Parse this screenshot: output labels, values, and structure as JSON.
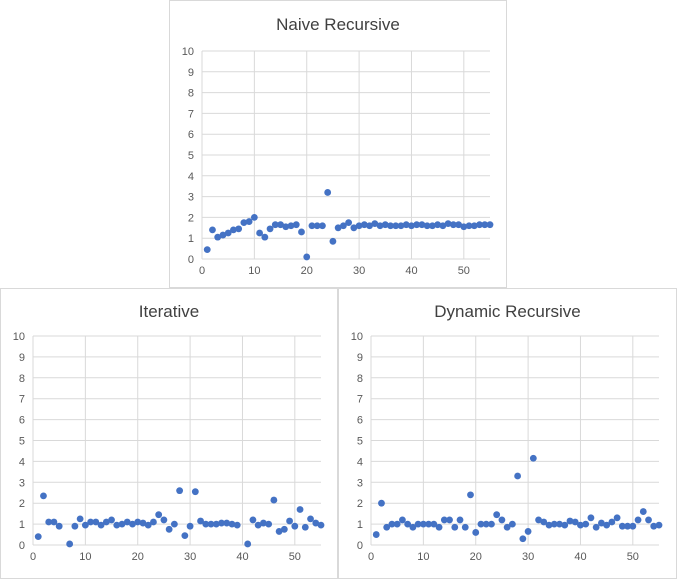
{
  "chart_data": [
    {
      "type": "scatter",
      "title": "Naive Recursive",
      "color": "#4472c4",
      "ylim": [
        0,
        10
      ],
      "xlim": [
        0,
        55
      ],
      "xticks": [
        0,
        10,
        20,
        30,
        40,
        50
      ],
      "yticks": [
        0,
        1,
        2,
        3,
        4,
        5,
        6,
        7,
        8,
        9,
        10
      ],
      "grid": true,
      "x": [
        1,
        2,
        3,
        4,
        5,
        6,
        7,
        8,
        9,
        10,
        11,
        12,
        13,
        14,
        15,
        16,
        17,
        18,
        19,
        20,
        21,
        22,
        23,
        24,
        25,
        26,
        27,
        28,
        29,
        30,
        31,
        32,
        33,
        34,
        35,
        36,
        37,
        38,
        39,
        40,
        41,
        42,
        43,
        44,
        45,
        46,
        47,
        48,
        49,
        50,
        51,
        52,
        53,
        54,
        55
      ],
      "y": [
        0.45,
        1.4,
        1.05,
        1.15,
        1.25,
        1.4,
        1.45,
        1.75,
        1.8,
        2.0,
        1.25,
        1.05,
        1.45,
        1.65,
        1.65,
        1.55,
        1.6,
        1.65,
        1.3,
        0.1,
        1.6,
        1.6,
        1.6,
        3.2,
        0.85,
        1.5,
        1.6,
        1.75,
        1.5,
        1.6,
        1.65,
        1.6,
        1.7,
        1.6,
        1.65,
        1.6,
        1.6,
        1.6,
        1.65,
        1.6,
        1.65,
        1.65,
        1.6,
        1.6,
        1.65,
        1.6,
        1.7,
        1.65,
        1.65,
        1.55,
        1.6,
        1.6,
        1.65,
        1.65,
        1.65
      ]
    },
    {
      "type": "scatter",
      "title": "Iterative",
      "color": "#4472c4",
      "ylim": [
        0,
        10
      ],
      "xlim": [
        0,
        55
      ],
      "xticks": [
        0,
        10,
        20,
        30,
        40,
        50
      ],
      "yticks": [
        0,
        1,
        2,
        3,
        4,
        5,
        6,
        7,
        8,
        9,
        10
      ],
      "grid": true,
      "x": [
        1,
        2,
        3,
        4,
        5,
        6,
        7,
        8,
        9,
        10,
        11,
        12,
        13,
        14,
        15,
        16,
        17,
        18,
        19,
        20,
        21,
        22,
        23,
        24,
        25,
        26,
        27,
        28,
        29,
        30,
        31,
        32,
        33,
        34,
        35,
        36,
        37,
        38,
        39,
        40,
        41,
        42,
        43,
        44,
        45,
        46,
        47,
        48,
        49,
        50,
        51,
        52,
        53,
        54,
        55
      ],
      "y": [
        0.4,
        2.35,
        1.1,
        1.1,
        0.9,
        null,
        0.05,
        0.9,
        1.25,
        0.95,
        1.1,
        1.1,
        0.95,
        1.1,
        1.2,
        0.95,
        1.0,
        1.1,
        1.0,
        1.1,
        1.05,
        0.95,
        1.1,
        1.45,
        1.2,
        0.75,
        1.0,
        2.6,
        0.45,
        0.9,
        2.55,
        1.15,
        1.0,
        1.0,
        1.0,
        1.05,
        1.05,
        1.0,
        0.95,
        null,
        0.05,
        1.2,
        0.95,
        1.05,
        1.0,
        2.15,
        0.65,
        0.75,
        1.15,
        0.9,
        1.7,
        0.85,
        1.25,
        1.05,
        0.95
      ]
    },
    {
      "type": "scatter",
      "title": "Dynamic Recursive",
      "color": "#4472c4",
      "ylim": [
        0,
        10
      ],
      "xlim": [
        0,
        55
      ],
      "xticks": [
        0,
        10,
        20,
        30,
        40,
        50
      ],
      "yticks": [
        0,
        1,
        2,
        3,
        4,
        5,
        6,
        7,
        8,
        9,
        10
      ],
      "grid": true,
      "x": [
        1,
        2,
        3,
        4,
        5,
        6,
        7,
        8,
        9,
        10,
        11,
        12,
        13,
        14,
        15,
        16,
        17,
        18,
        19,
        20,
        21,
        22,
        23,
        24,
        25,
        26,
        27,
        28,
        29,
        30,
        31,
        32,
        33,
        34,
        35,
        36,
        37,
        38,
        39,
        40,
        41,
        42,
        43,
        44,
        45,
        46,
        47,
        48,
        49,
        50,
        51,
        52,
        53,
        54,
        55
      ],
      "y": [
        0.5,
        2.0,
        0.85,
        1.0,
        1.0,
        1.2,
        1.0,
        0.85,
        1.0,
        1.0,
        1.0,
        1.0,
        0.85,
        1.2,
        1.2,
        0.85,
        1.2,
        0.85,
        2.4,
        0.6,
        1.0,
        1.0,
        1.0,
        1.45,
        1.2,
        0.85,
        1.0,
        3.3,
        0.3,
        0.65,
        4.15,
        1.2,
        1.1,
        0.95,
        1.0,
        1.0,
        0.95,
        1.15,
        1.1,
        0.95,
        1.0,
        1.3,
        0.85,
        1.05,
        0.95,
        1.1,
        1.3,
        0.9,
        0.9,
        0.9,
        1.2,
        1.6,
        1.2,
        0.9,
        0.95
      ]
    }
  ]
}
